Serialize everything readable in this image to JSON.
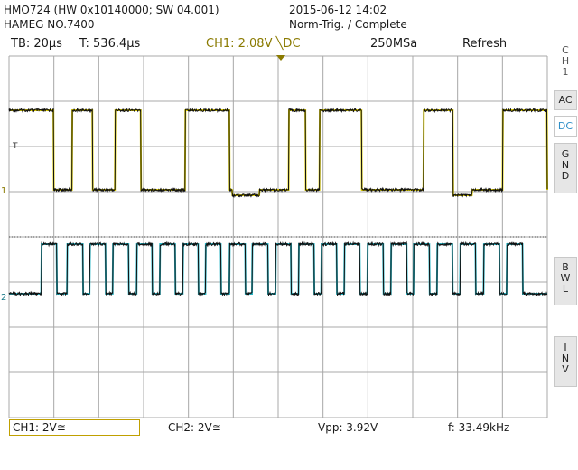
{
  "header": {
    "model": "HMO724 (HW 0x10140000; SW 04.001)",
    "device": "HAMEG NO.7400",
    "datetime": "2015-06-12 14:02",
    "status": "Norm-Trig. / Complete"
  },
  "topbar": {
    "timebase": "TB: 20µs",
    "trigger_time": "T: 536.4µs",
    "ch1_trigger": "CH1: 2.08V ╲DC",
    "sample_rate": "250MSa",
    "mode": "Refresh"
  },
  "side": {
    "channel": [
      "C",
      "H",
      "1"
    ],
    "ac": "AC",
    "dc": "DC",
    "gnd": [
      "G",
      "N",
      "D"
    ],
    "bwl": [
      "B",
      "W",
      "L"
    ],
    "inv": [
      "I",
      "N",
      "V"
    ]
  },
  "markers": {
    "ch1": "1",
    "ch2": "2",
    "trigger": "T"
  },
  "bottombar": {
    "ch1_scale": "CH1: 2V≅",
    "ch2_scale": "CH2: 2V≅",
    "vpp": "Vpp: 3.92V",
    "freq": "f: 33.49kHz"
  },
  "colors": {
    "ch1": "#e0d000",
    "ch2": "#28b8c8",
    "grid": "#a8a8a8",
    "accent": "#2f8fc8"
  },
  "waveforms": {
    "ch1_high_intervals": [
      [
        0,
        0.083
      ],
      [
        0.117,
        0.155
      ],
      [
        0.197,
        0.245
      ],
      [
        0.327,
        0.41
      ],
      [
        0.52,
        0.551
      ],
      [
        0.577,
        0.655
      ],
      [
        0.77,
        0.825
      ],
      [
        0.917,
        1.0
      ]
    ],
    "ch1_mid_intervals": [
      [
        0.415,
        0.465
      ],
      [
        0.825,
        0.86
      ]
    ],
    "ch2_edges": [
      0.06,
      0.108,
      0.15,
      0.193,
      0.237,
      0.28,
      0.323,
      0.365,
      0.41,
      0.452,
      0.495,
      0.538,
      0.58,
      0.623,
      0.666,
      0.71,
      0.752,
      0.795,
      0.838,
      0.882,
      0.925
    ]
  }
}
